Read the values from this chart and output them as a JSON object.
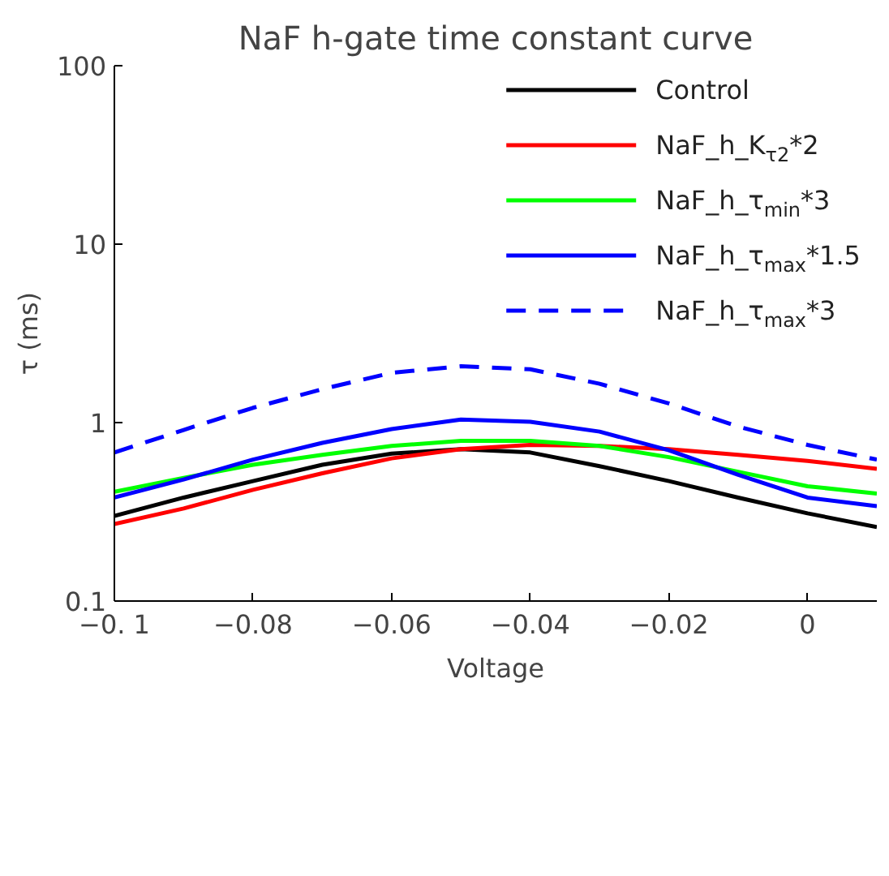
{
  "chart_data": {
    "type": "line",
    "title": "NaF h-gate time constant curve",
    "xlabel": "Voltage",
    "ylabel": "τ (ms)",
    "x": [
      -0.1,
      -0.09,
      -0.08,
      -0.07,
      -0.06,
      -0.05,
      -0.04,
      -0.03,
      -0.02,
      -0.01,
      0,
      0.01
    ],
    "series": [
      {
        "name": "Control",
        "color": "#000000",
        "values": [
          0.3,
          0.38,
          0.47,
          0.58,
          0.67,
          0.71,
          0.68,
          0.57,
          0.47,
          0.38,
          0.31,
          0.26
        ]
      },
      {
        "name": "NaF_h_K$_{τ2}$*2",
        "color": "#ff0000",
        "values": [
          0.27,
          0.33,
          0.42,
          0.52,
          0.63,
          0.71,
          0.75,
          0.74,
          0.71,
          0.66,
          0.61,
          0.55
        ]
      },
      {
        "name": "NaF_h_τ$_{min}$*3",
        "color": "#00ff00",
        "values": [
          0.41,
          0.49,
          0.58,
          0.66,
          0.74,
          0.79,
          0.79,
          0.74,
          0.64,
          0.53,
          0.44,
          0.4
        ]
      },
      {
        "name": "NaF_h_τ$_{max}$*1.5",
        "color": "#0000ff",
        "values": [
          0.38,
          0.48,
          0.62,
          0.77,
          0.92,
          1.04,
          1.01,
          0.89,
          0.7,
          0.51,
          0.38,
          0.34
        ]
      },
      {
        "name": "NaF_h_τ$_{max}$*3",
        "color": "#0000ff",
        "line_style": "dashed",
        "values": [
          0.68,
          0.91,
          1.21,
          1.54,
          1.9,
          2.07,
          1.99,
          1.65,
          1.28,
          0.95,
          0.75,
          0.62
        ]
      }
    ],
    "xlim": [
      -0.1,
      0.01
    ],
    "ylim": [
      0.1,
      100
    ],
    "xticks": [
      {
        "value": -0.1,
        "label": "−0. 1"
      },
      {
        "value": -0.08,
        "label": "−0.08"
      },
      {
        "value": -0.06,
        "label": "−0.06"
      },
      {
        "value": -0.04,
        "label": "−0.04"
      },
      {
        "value": -0.02,
        "label": "−0.02"
      },
      0
    ],
    "yticks": [
      {
        "value": 0.1,
        "label": "0.1"
      },
      1,
      10,
      100
    ],
    "log": "y",
    "grid": false,
    "legend": "top right",
    "marker": "none",
    "line_style": "solid"
  }
}
